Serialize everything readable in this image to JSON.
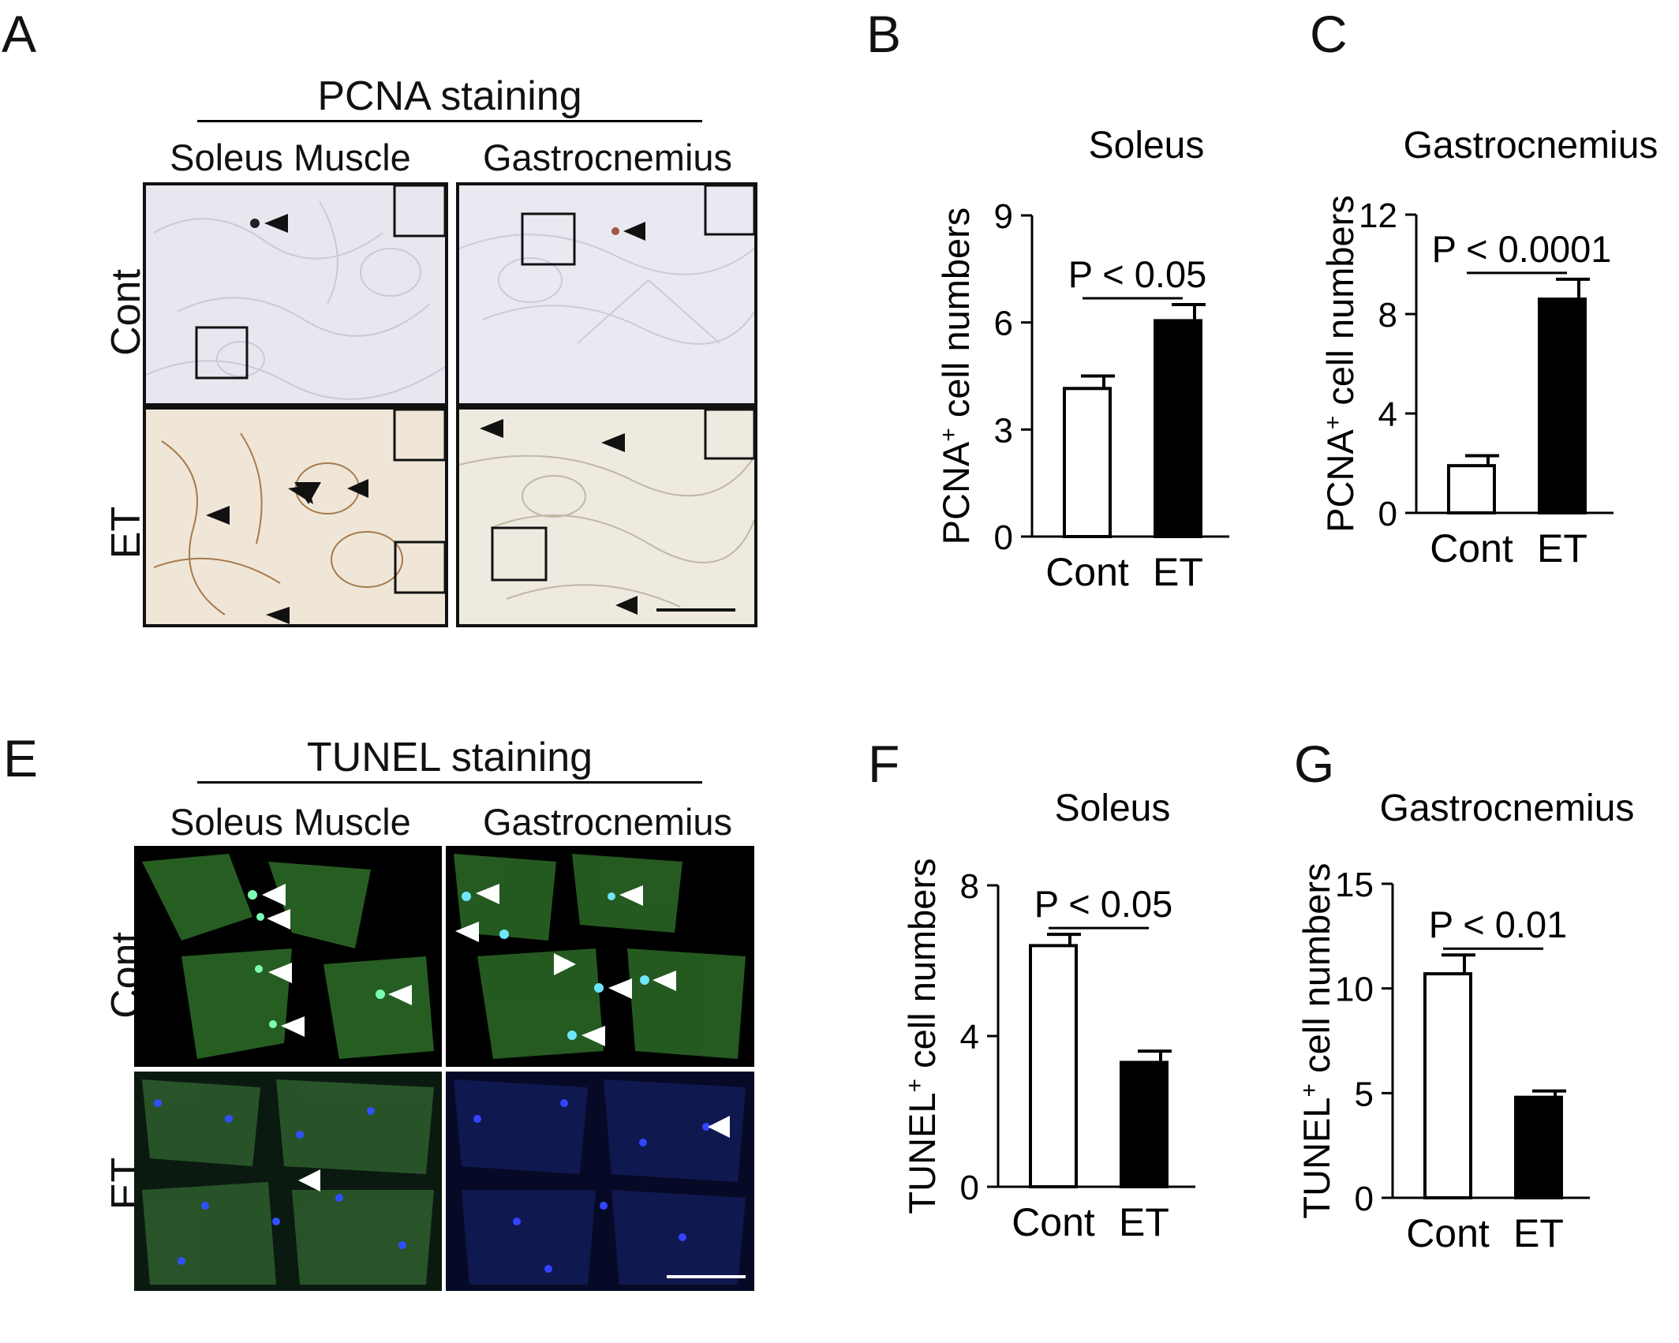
{
  "panels": {
    "A": {
      "letter": "A",
      "title": "PCNA staining",
      "col1": "Soleus Muscle",
      "col2": "Gastrocnemius",
      "row1": "Cont",
      "row2": "ET"
    },
    "E": {
      "letter": "E",
      "title": "TUNEL staining",
      "col1": "Soleus Muscle",
      "col2": "Gastrocnemius",
      "row1": "Cont",
      "row2": "ET"
    },
    "B": {
      "letter": "B"
    },
    "C": {
      "letter": "C"
    },
    "F": {
      "letter": "F"
    },
    "G": {
      "letter": "G"
    }
  },
  "colors": {
    "control_bar": "#ffffff",
    "et_bar": "#000000",
    "ihc_bg": "#e6e7ee",
    "ihc_brown": "#7a4a22",
    "tunel_green": "#2e8a2a",
    "tunel_blue": "#2a3cff"
  },
  "chart_data": [
    {
      "id": "B",
      "type": "bar",
      "title": "Soleus",
      "ylabel_main": "PCNA",
      "ylabel_sup": "+",
      "ylabel_rest": " cell numbers",
      "categories": [
        "Cont",
        "ET"
      ],
      "values": [
        4.15,
        6.05
      ],
      "errors": [
        0.35,
        0.45
      ],
      "ylim": [
        0,
        9
      ],
      "yticks": [
        0,
        3,
        6,
        9
      ],
      "significance": "P < 0.05"
    },
    {
      "id": "C",
      "type": "bar",
      "title": "Gastrocnemius",
      "ylabel_main": "PCNA",
      "ylabel_sup": "+",
      "ylabel_rest": " cell numbers",
      "categories": [
        "Cont",
        "ET"
      ],
      "values": [
        1.9,
        8.6
      ],
      "errors": [
        0.4,
        0.8
      ],
      "ylim": [
        0,
        12
      ],
      "yticks": [
        0,
        4,
        8,
        12
      ],
      "significance": "P < 0.0001"
    },
    {
      "id": "F",
      "type": "bar",
      "title": "Soleus",
      "ylabel_main": "TUNEL",
      "ylabel_sup": "+",
      "ylabel_rest": " cell numbers",
      "categories": [
        "Cont",
        "ET"
      ],
      "values": [
        6.4,
        3.3
      ],
      "errors": [
        0.3,
        0.3
      ],
      "ylim": [
        0,
        8
      ],
      "yticks": [
        0,
        4,
        8
      ],
      "significance": "P < 0.05"
    },
    {
      "id": "G",
      "type": "bar",
      "title": "Gastrocnemius",
      "ylabel_main": "TUNEL",
      "ylabel_sup": "+",
      "ylabel_rest": " cell numbers",
      "categories": [
        "Cont",
        "ET"
      ],
      "values": [
        10.7,
        4.8
      ],
      "errors": [
        0.9,
        0.3
      ],
      "ylim": [
        0,
        15
      ],
      "yticks": [
        0,
        5,
        10,
        15
      ],
      "significance": "P < 0.01"
    }
  ]
}
